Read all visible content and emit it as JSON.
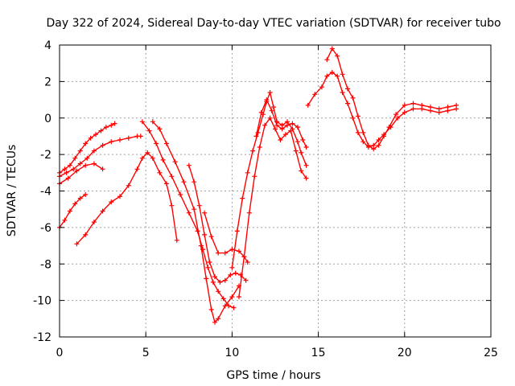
{
  "chart_data": {
    "type": "scatter",
    "title": "Day 322 of 2024, Sidereal Day-to-day VTEC variation (SDTVAR) for receiver tubo",
    "xlabel": "GPS time / hours",
    "ylabel": "SDTVAR / TECUs",
    "xlim": [
      0,
      25
    ],
    "ylim": [
      -12,
      4
    ],
    "xticks": [
      0,
      5,
      10,
      15,
      20,
      25
    ],
    "yticks": [
      -12,
      -10,
      -8,
      -6,
      -4,
      -2,
      0,
      2,
      4
    ],
    "grid": true,
    "marker": "+",
    "color": "#ff0000",
    "series": [
      {
        "x": [
          0.0,
          0.3,
          0.6,
          0.9,
          1.2,
          1.5,
          1.8,
          2.1,
          2.4,
          2.7,
          3.0,
          3.2
        ],
        "y": [
          -3.0,
          -2.8,
          -2.6,
          -2.2,
          -1.8,
          -1.4,
          -1.1,
          -0.9,
          -0.7,
          -0.5,
          -0.4,
          -0.3
        ]
      },
      {
        "x": [
          0.0,
          0.4,
          0.8,
          1.2,
          1.6,
          2.0,
          2.5,
          3.0,
          3.5,
          4.0,
          4.5,
          4.7
        ],
        "y": [
          -3.2,
          -3.0,
          -2.8,
          -2.5,
          -2.2,
          -1.8,
          -1.5,
          -1.3,
          -1.2,
          -1.1,
          -1.0,
          -1.0
        ]
      },
      {
        "x": [
          0.0,
          0.5,
          1.0,
          1.5,
          2.0,
          2.5
        ],
        "y": [
          -3.6,
          -3.3,
          -2.9,
          -2.6,
          -2.5,
          -2.8
        ]
      },
      {
        "x": [
          0.0,
          0.3,
          0.6,
          0.9,
          1.2,
          1.5
        ],
        "y": [
          -6.0,
          -5.6,
          -5.1,
          -4.7,
          -4.4,
          -4.2
        ]
      },
      {
        "x": [
          1.0,
          1.5,
          2.0,
          2.5,
          3.0,
          3.5,
          4.0,
          4.5,
          4.8,
          5.1,
          5.4,
          5.8,
          6.2,
          6.5,
          6.8
        ],
        "y": [
          -6.9,
          -6.4,
          -5.7,
          -5.1,
          -4.6,
          -4.3,
          -3.7,
          -2.8,
          -2.2,
          -1.9,
          -2.2,
          -3.0,
          -3.6,
          -4.8,
          -6.7
        ]
      },
      {
        "x": [
          4.8,
          5.2,
          5.6,
          6.0,
          6.5,
          7.0,
          7.5,
          8.0,
          8.3,
          8.6,
          8.9,
          9.2,
          9.5,
          9.8,
          10.1
        ],
        "y": [
          -0.2,
          -0.7,
          -1.4,
          -2.3,
          -3.2,
          -4.2,
          -5.2,
          -6.2,
          -7.2,
          -8.2,
          -9.0,
          -9.5,
          -9.9,
          -10.3,
          -10.4
        ]
      },
      {
        "x": [
          5.4,
          5.8,
          6.2,
          6.7,
          7.2,
          7.8,
          8.2,
          8.5,
          8.8,
          9.0,
          9.2,
          9.6,
          10.0,
          10.4
        ],
        "y": [
          -0.2,
          -0.6,
          -1.4,
          -2.4,
          -3.5,
          -5.0,
          -7.0,
          -8.8,
          -10.5,
          -11.2,
          -11.0,
          -10.3,
          -9.8,
          -9.2
        ]
      },
      {
        "x": [
          7.5,
          7.8,
          8.1,
          8.4,
          8.7,
          9.0,
          9.3,
          9.6,
          9.9,
          10.2,
          10.5,
          10.8
        ],
        "y": [
          -2.6,
          -3.5,
          -4.8,
          -6.4,
          -7.9,
          -8.7,
          -9.0,
          -8.9,
          -8.6,
          -8.5,
          -8.6,
          -8.9
        ]
      },
      {
        "x": [
          8.4,
          8.8,
          9.2,
          9.6,
          10.0,
          10.4,
          10.7,
          10.9
        ],
        "y": [
          -5.2,
          -6.5,
          -7.4,
          -7.4,
          -7.2,
          -7.3,
          -7.6,
          -7.9
        ]
      },
      {
        "x": [
          10.0,
          10.3,
          10.6,
          10.9,
          11.2,
          11.5,
          11.8,
          12.0,
          12.2,
          12.4,
          12.6,
          12.9,
          13.2,
          13.5,
          13.8,
          14.0,
          14.3
        ],
        "y": [
          -8.2,
          -6.2,
          -4.4,
          -3.0,
          -1.8,
          -0.8,
          0.2,
          0.9,
          1.4,
          0.6,
          -0.2,
          -0.4,
          -0.2,
          -0.6,
          -1.3,
          -1.9,
          -2.6
        ]
      },
      {
        "x": [
          10.4,
          10.7,
          11.0,
          11.3,
          11.6,
          11.9,
          12.2,
          12.5,
          12.8,
          13.1,
          13.4,
          13.7,
          14.0,
          14.3
        ],
        "y": [
          -9.8,
          -7.6,
          -5.2,
          -3.2,
          -1.6,
          -0.4,
          0.0,
          -0.6,
          -1.2,
          -0.9,
          -0.7,
          -1.8,
          -2.9,
          -3.3
        ]
      },
      {
        "x": [
          11.4,
          11.7,
          12.0,
          12.3,
          12.6,
          12.9,
          13.2,
          13.5,
          13.8,
          14.1,
          14.3
        ],
        "y": [
          -1.0,
          0.3,
          1.0,
          0.4,
          -0.4,
          -0.6,
          -0.4,
          -0.3,
          -0.5,
          -1.2,
          -1.6
        ]
      },
      {
        "x": [
          14.4,
          14.8,
          15.2,
          15.5,
          15.8,
          16.1,
          16.4,
          16.7,
          17.0,
          17.3,
          17.6,
          17.9,
          18.2,
          18.5,
          18.8,
          19.2,
          19.6,
          20.0,
          20.5,
          21.0,
          21.5,
          22.0,
          22.5,
          23.0
        ],
        "y": [
          0.7,
          1.3,
          1.7,
          2.3,
          2.5,
          2.3,
          1.4,
          0.8,
          0.0,
          -0.8,
          -1.3,
          -1.6,
          -1.5,
          -1.2,
          -0.9,
          -0.5,
          0.0,
          0.3,
          0.5,
          0.5,
          0.4,
          0.3,
          0.4,
          0.5
        ]
      },
      {
        "x": [
          15.5,
          15.8,
          16.1,
          16.4,
          16.7,
          17.0,
          17.3,
          17.6,
          17.9,
          18.2,
          18.5,
          18.8,
          19.1,
          19.5,
          20.0,
          20.5,
          21.0,
          21.5,
          22.0,
          22.5,
          23.0
        ],
        "y": [
          3.2,
          3.8,
          3.4,
          2.4,
          1.6,
          1.1,
          0.1,
          -0.8,
          -1.5,
          -1.7,
          -1.5,
          -1.0,
          -0.5,
          0.2,
          0.7,
          0.8,
          0.7,
          0.6,
          0.5,
          0.6,
          0.7
        ]
      }
    ]
  }
}
